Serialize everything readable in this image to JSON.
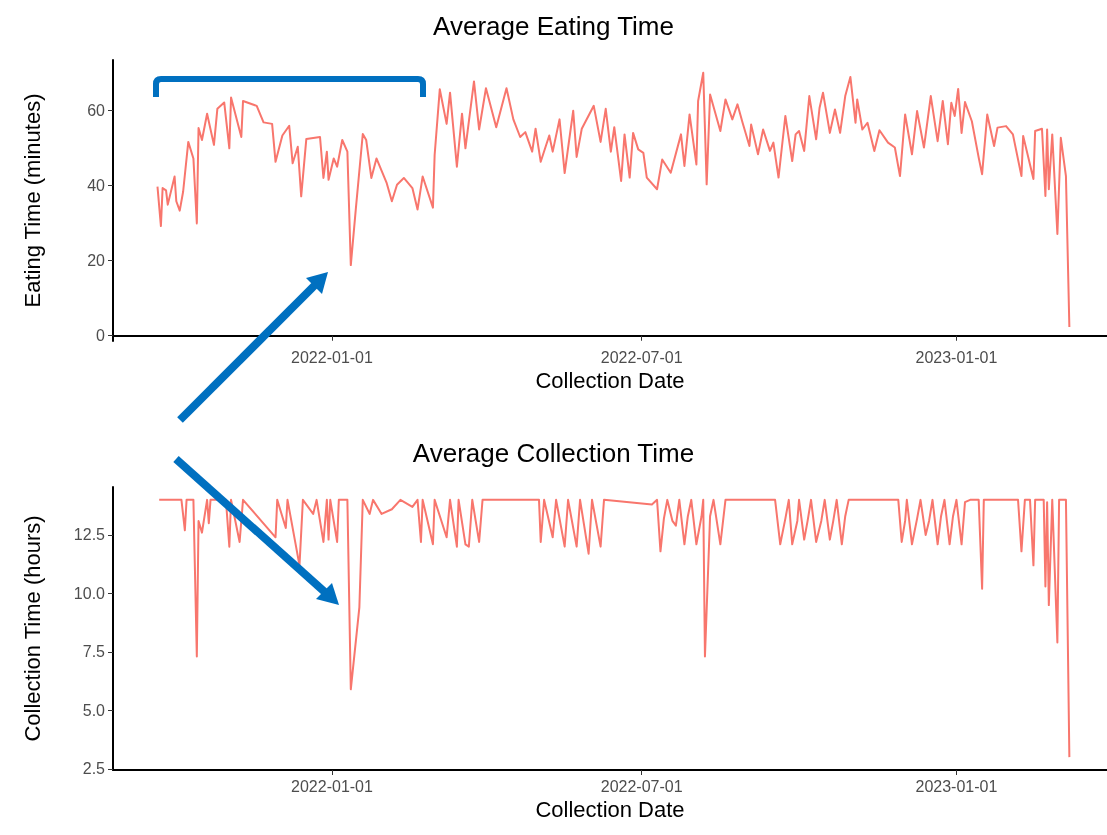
{
  "chart_data": [
    {
      "type": "line",
      "title": "Average Eating Time",
      "xlabel": "Collection Date",
      "ylabel": "Eating Time (minutes)",
      "xlim": [
        "2021-08-26",
        "2023-03-30"
      ],
      "xticks": [
        "2022-01-01",
        "2022-07-01",
        "2023-01-01"
      ],
      "ylim": [
        -1.4,
        73.4
      ],
      "yticks": [
        0,
        20,
        40,
        60
      ],
      "grid": false,
      "series": [
        {
          "color": "#f8766d",
          "x": [
            "2021-09-21",
            "2021-09-23",
            "2021-09-24",
            "2021-09-26",
            "2021-09-27",
            "2021-10-01",
            "2021-10-02",
            "2021-10-04",
            "2021-10-06",
            "2021-10-09",
            "2021-10-12",
            "2021-10-14",
            "2021-10-15",
            "2021-10-17",
            "2021-10-20",
            "2021-10-24",
            "2021-10-26",
            "2021-10-30",
            "2021-11-02",
            "2021-11-03",
            "2021-11-09",
            "2021-11-10",
            "2021-11-18",
            "2021-11-22",
            "2021-11-27",
            "2021-11-29",
            "2021-12-03",
            "2021-12-07",
            "2021-12-09",
            "2021-12-12",
            "2021-12-14",
            "2021-12-17",
            "2021-12-25",
            "2021-12-27",
            "2021-12-29",
            "2021-12-30",
            "2022-01-02",
            "2022-01-04",
            "2022-01-07",
            "2022-01-10",
            "2022-01-12",
            "2022-01-15",
            "2022-01-19",
            "2022-01-21",
            "2022-01-24",
            "2022-01-27",
            "2022-02-02",
            "2022-02-05",
            "2022-02-08",
            "2022-02-12",
            "2022-02-17",
            "2022-02-20",
            "2022-02-23",
            "2022-03-01",
            "2022-03-02",
            "2022-03-05",
            "2022-03-09",
            "2022-03-11",
            "2022-03-15",
            "2022-03-18",
            "2022-03-20",
            "2022-03-25",
            "2022-03-28",
            "2022-04-01",
            "2022-04-07",
            "2022-04-13",
            "2022-04-17",
            "2022-04-21",
            "2022-04-24",
            "2022-04-28",
            "2022-04-30",
            "2022-05-03",
            "2022-05-08",
            "2022-05-10",
            "2022-05-14",
            "2022-05-17",
            "2022-05-20",
            "2022-05-22",
            "2022-05-24",
            "2022-05-27",
            "2022-06-03",
            "2022-06-07",
            "2022-06-10",
            "2022-06-13",
            "2022-06-15",
            "2022-06-19",
            "2022-06-21",
            "2022-06-24",
            "2022-06-26",
            "2022-06-29",
            "2022-07-02",
            "2022-07-04",
            "2022-07-10",
            "2022-07-13",
            "2022-07-18",
            "2022-07-24",
            "2022-07-26",
            "2022-07-29",
            "2022-08-02",
            "2022-08-03",
            "2022-08-06",
            "2022-08-08",
            "2022-08-10",
            "2022-08-16",
            "2022-08-19",
            "2022-08-23",
            "2022-08-26",
            "2022-08-29",
            "2022-09-02",
            "2022-09-03",
            "2022-09-07",
            "2022-09-10",
            "2022-09-14",
            "2022-09-16",
            "2022-09-19",
            "2022-09-23",
            "2022-09-27",
            "2022-09-29",
            "2022-10-01",
            "2022-10-04",
            "2022-10-07",
            "2022-10-11",
            "2022-10-13",
            "2022-10-15",
            "2022-10-19",
            "2022-10-22",
            "2022-10-25",
            "2022-10-28",
            "2022-10-31",
            "2022-11-03",
            "2022-11-04",
            "2022-11-07",
            "2022-11-10",
            "2022-11-14",
            "2022-11-17",
            "2022-11-22",
            "2022-11-26",
            "2022-11-29",
            "2022-12-02",
            "2022-12-06",
            "2022-12-09",
            "2022-12-13",
            "2022-12-17",
            "2022-12-21",
            "2022-12-24",
            "2022-12-27",
            "2022-12-29",
            "2022-12-31",
            "2023-01-02",
            "2023-01-04",
            "2023-01-06",
            "2023-01-10",
            "2023-01-14",
            "2023-01-16",
            "2023-01-19",
            "2023-01-23",
            "2023-01-25",
            "2023-01-30",
            "2023-02-03",
            "2023-02-08",
            "2023-02-09",
            "2023-02-15",
            "2023-02-16",
            "2023-02-20",
            "2023-02-22",
            "2023-02-23",
            "2023-02-24",
            "2023-02-26",
            "2023-03-01",
            "2023-03-03",
            "2023-03-06",
            "2023-03-08"
          ],
          "values": [
            39.7,
            29.2,
            39.3,
            38.7,
            34.9,
            42.4,
            35.8,
            33.3,
            38.4,
            51.6,
            47.2,
            29.9,
            55.3,
            52.1,
            59.1,
            50.8,
            60.4,
            62.1,
            49.9,
            63.4,
            52.9,
            62.5,
            61.2,
            56.8,
            56.4,
            46.3,
            53.3,
            55.9,
            45.9,
            50.3,
            37.1,
            52.4,
            52.9,
            42.0,
            49.0,
            41.5,
            47.2,
            45.0,
            52.1,
            49.0,
            18.8,
            34.1,
            53.7,
            52.1,
            42.0,
            47.2,
            40.6,
            35.8,
            40.2,
            42.0,
            39.3,
            33.6,
            42.4,
            34.1,
            48.1,
            65.6,
            56.4,
            64.7,
            45.0,
            59.1,
            49.9,
            67.7,
            54.9,
            65.9,
            55.5,
            65.9,
            57.6,
            52.9,
            54.2,
            49.0,
            55.1,
            46.3,
            53.3,
            49.0,
            57.6,
            43.3,
            53.3,
            59.9,
            47.6,
            55.1,
            61.2,
            51.6,
            60.4,
            49.0,
            55.5,
            41.2,
            53.6,
            42.1,
            54.0,
            49.6,
            48.7,
            42.1,
            39.0,
            46.9,
            43.4,
            53.6,
            45.2,
            58.9,
            45.6,
            62.5,
            70.0,
            40.3,
            64.2,
            54.5,
            62.9,
            57.6,
            61.6,
            56.7,
            50.5,
            56.2,
            48.3,
            54.9,
            49.2,
            51.4,
            42.1,
            58.5,
            46.5,
            53.6,
            54.5,
            49.2,
            63.8,
            52.3,
            60.7,
            64.7,
            54.0,
            60.2,
            54.0,
            63.8,
            68.9,
            56.7,
            62.9,
            54.9,
            56.7,
            49.2,
            54.7,
            51.4,
            50.1,
            42.5,
            58.9,
            48.3,
            59.8,
            50.1,
            63.8,
            51.8,
            62.5,
            51.0,
            62.0,
            58.5,
            65.7,
            54.0,
            62.2,
            57.1,
            47.4,
            43.0,
            58.9,
            50.5,
            55.4,
            55.8,
            53.6,
            42.5,
            53.2,
            41.7,
            54.5,
            55.1,
            37.2,
            54.9,
            39.0,
            53.6,
            27.1,
            52.7,
            42.5,
            2.3
          ]
        }
      ]
    },
    {
      "type": "line",
      "title": "Average Collection Time",
      "xlabel": "Collection Date",
      "ylabel": "Collection Time (hours)",
      "xlim": [
        "2021-08-26",
        "2023-03-30"
      ],
      "xticks": [
        "2022-01-01",
        "2022-07-01",
        "2023-01-01"
      ],
      "ylim": [
        2.45,
        14.55
      ],
      "yticks": [
        2.5,
        {
          "value": 5,
          "label": "5.0"
        },
        7.5,
        {
          "value": 10,
          "label": "10.0"
        },
        12.5
      ],
      "grid": false,
      "series": [
        {
          "color": "#f8766d",
          "x": [
            "2021-09-22",
            "2021-10-05",
            "2021-10-07",
            "2021-10-08",
            "2021-10-12",
            "2021-10-14",
            "2021-10-15",
            "2021-10-17",
            "2021-10-20",
            "2021-10-21",
            "2021-10-22",
            "2021-10-31",
            "2021-11-02",
            "2021-11-03",
            "2021-11-08",
            "2021-11-10",
            "2021-11-29",
            "2021-11-30",
            "2021-12-05",
            "2021-12-06",
            "2021-12-13",
            "2021-12-15",
            "2021-12-21",
            "2021-12-23",
            "2021-12-27",
            "2021-12-29",
            "2021-12-30",
            "2021-12-31",
            "2022-01-04",
            "2022-01-05",
            "2022-01-10",
            "2022-01-12",
            "2022-01-17",
            "2022-01-19",
            "2022-01-23",
            "2022-01-25",
            "2022-01-30",
            "2022-02-05",
            "2022-02-10",
            "2022-02-17",
            "2022-02-20",
            "2022-02-22",
            "2022-02-23",
            "2022-03-01",
            "2022-03-02",
            "2022-03-09",
            "2022-03-11",
            "2022-03-15",
            "2022-03-16",
            "2022-03-20",
            "2022-03-22",
            "2022-03-24",
            "2022-03-28",
            "2022-03-30",
            "2022-05-02",
            "2022-05-03",
            "2022-05-05",
            "2022-05-10",
            "2022-05-12",
            "2022-05-17",
            "2022-05-19",
            "2022-05-24",
            "2022-05-26",
            "2022-05-31",
            "2022-06-02",
            "2022-06-07",
            "2022-06-09",
            "2022-07-07",
            "2022-07-10",
            "2022-07-12",
            "2022-07-14",
            "2022-07-16",
            "2022-07-19",
            "2022-07-21",
            "2022-07-23",
            "2022-07-26",
            "2022-07-28",
            "2022-07-30",
            "2022-08-02",
            "2022-08-05",
            "2022-08-06",
            "2022-08-07",
            "2022-08-10",
            "2022-08-12",
            "2022-08-16",
            "2022-08-19",
            "2022-09-17",
            "2022-09-20",
            "2022-09-23",
            "2022-09-25",
            "2022-09-27",
            "2022-09-30",
            "2022-10-01",
            "2022-10-04",
            "2022-10-06",
            "2022-10-08",
            "2022-10-11",
            "2022-10-14",
            "2022-10-16",
            "2022-10-19",
            "2022-10-21",
            "2022-10-23",
            "2022-10-26",
            "2022-10-28",
            "2022-10-30",
            "2022-11-28",
            "2022-11-30",
            "2022-12-02",
            "2022-12-03",
            "2022-12-06",
            "2022-12-09",
            "2022-12-11",
            "2022-12-14",
            "2022-12-16",
            "2022-12-18",
            "2022-12-21",
            "2022-12-23",
            "2022-12-25",
            "2022-12-28",
            "2022-12-30",
            "2023-01-01",
            "2023-01-04",
            "2023-01-06",
            "2023-01-09",
            "2023-01-14",
            "2023-01-16",
            "2023-01-17",
            "2023-02-06",
            "2023-02-08",
            "2023-02-10",
            "2023-02-13",
            "2023-02-15",
            "2023-02-16",
            "2023-02-21",
            "2023-02-22",
            "2023-02-23",
            "2023-02-24",
            "2023-02-26",
            "2023-03-01",
            "2023-03-02",
            "2023-03-06",
            "2023-03-08"
          ],
          "values": [
            14.0,
            14.0,
            12.7,
            14.0,
            14.0,
            7.3,
            13.1,
            12.6,
            14.0,
            13.0,
            14.0,
            14.0,
            12.0,
            14.0,
            12.2,
            14.0,
            12.4,
            14.0,
            12.8,
            14.0,
            11.2,
            14.0,
            13.4,
            14.0,
            12.2,
            14.0,
            12.3,
            14.0,
            12.2,
            14.0,
            14.0,
            5.9,
            9.4,
            14.0,
            13.4,
            14.0,
            13.4,
            13.6,
            14.0,
            13.7,
            14.0,
            12.2,
            14.0,
            12.1,
            14.0,
            12.4,
            14.0,
            12.0,
            14.0,
            12.1,
            12.0,
            14.0,
            12.2,
            14.0,
            14.0,
            12.2,
            14.0,
            12.4,
            14.0,
            12.0,
            14.0,
            12.0,
            14.0,
            11.7,
            14.0,
            12.0,
            14.0,
            13.8,
            14.0,
            11.8,
            13.2,
            14.0,
            13.1,
            12.9,
            14.0,
            12.1,
            13.3,
            14.0,
            12.1,
            13.3,
            14.0,
            7.3,
            13.3,
            14.0,
            12.1,
            14.0,
            14.0,
            12.1,
            13.2,
            14.0,
            12.1,
            13.1,
            14.0,
            12.3,
            13.1,
            14.0,
            12.2,
            13.1,
            14.0,
            12.3,
            13.1,
            14.0,
            12.1,
            13.3,
            14.0,
            14.0,
            12.2,
            13.1,
            14.0,
            12.1,
            13.2,
            14.0,
            12.5,
            13.1,
            14.0,
            12.1,
            13.3,
            14.0,
            12.1,
            13.3,
            14.0,
            12.1,
            13.9,
            14.0,
            14.0,
            10.2,
            14.0,
            14.0,
            11.8,
            14.0,
            14.0,
            11.2,
            14.0,
            14.0,
            10.3,
            13.9,
            9.5,
            14.0,
            7.9,
            14.0,
            14.0,
            3.0
          ]
        }
      ]
    }
  ]
}
